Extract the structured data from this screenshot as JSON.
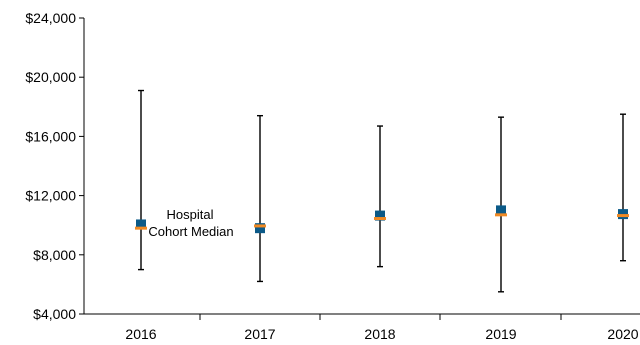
{
  "chart_data": {
    "type": "scatter",
    "title": "",
    "xlabel": "",
    "ylabel": "",
    "categories": [
      "2016",
      "2017",
      "2018",
      "2019",
      "2020"
    ],
    "ylim": [
      4000,
      24000
    ],
    "y_ticks": [
      "$4,000",
      "$8,000",
      "$12,000",
      "$16,000",
      "$20,000",
      "$24,000"
    ],
    "y_tick_values": [
      4000,
      8000,
      12000,
      16000,
      20000,
      24000
    ],
    "grid": false,
    "legend": "none",
    "ranges": {
      "min": [
        7000,
        6200,
        7200,
        5500,
        7600
      ],
      "max": [
        19100,
        17400,
        16700,
        17300,
        17500
      ]
    },
    "series": [
      {
        "values": [
          10050,
          9800,
          10650,
          11000,
          10750
        ],
        "color": "#0b5a88",
        "marker": "square"
      },
      {
        "values": [
          9800,
          9950,
          10450,
          10700,
          10650
        ],
        "color": "#f08a24",
        "marker": "dash"
      }
    ],
    "annotations": [
      {
        "lines": [
          "Hospital",
          "Cohort Median"
        ],
        "x_category": "2016"
      }
    ]
  }
}
